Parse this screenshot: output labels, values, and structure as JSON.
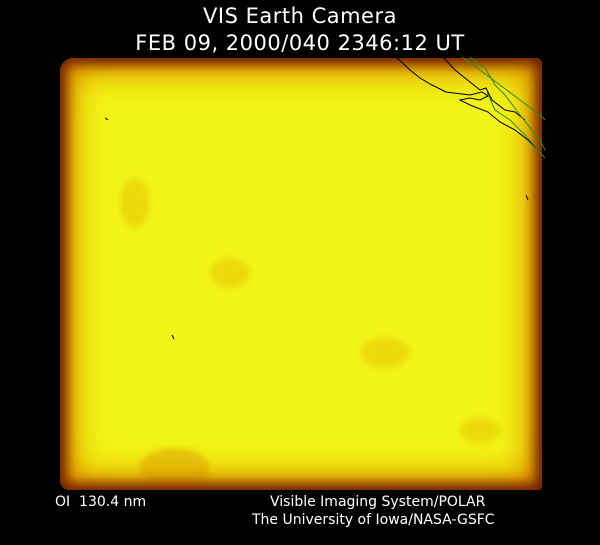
{
  "header": {
    "title": "VIS Earth Camera",
    "timestamp": "FEB 09, 2000/040 2346:12 UT"
  },
  "image": {
    "colormap": [
      "#000000",
      "#6a1d00",
      "#d47a00",
      "#f2f516"
    ],
    "coastline_color": "#000000",
    "grid_color": "#2e8b2e"
  },
  "footer": {
    "wavelength": "OI  130.4 nm",
    "instrument": "Visible Imaging System/POLAR",
    "credit": "The University of Iowa/NASA-GSFC"
  }
}
